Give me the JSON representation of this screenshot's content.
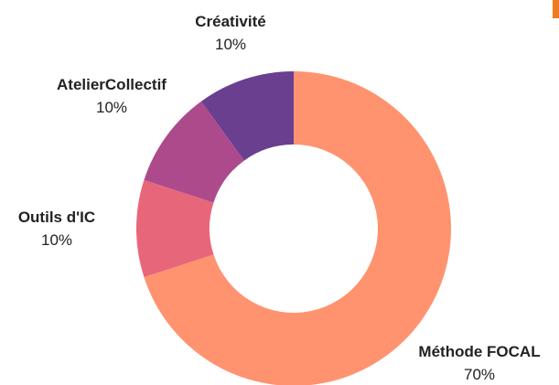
{
  "accent_color": "#f07a22",
  "chart_data": {
    "type": "pie",
    "donut": true,
    "title": "",
    "legend": "none",
    "slices": [
      {
        "label": "Méthode FOCAL",
        "value": 70,
        "percent_label": "70%",
        "color": "#ff9370"
      },
      {
        "label": "Outils d'IC",
        "value": 10,
        "percent_label": "10%",
        "color": "#e8667a"
      },
      {
        "label": "AtelierCollectif",
        "value": 10,
        "percent_label": "10%",
        "color": "#ad4a8c"
      },
      {
        "label": "Créativité",
        "value": 10,
        "percent_label": "10%",
        "color": "#6a3f90"
      }
    ]
  }
}
